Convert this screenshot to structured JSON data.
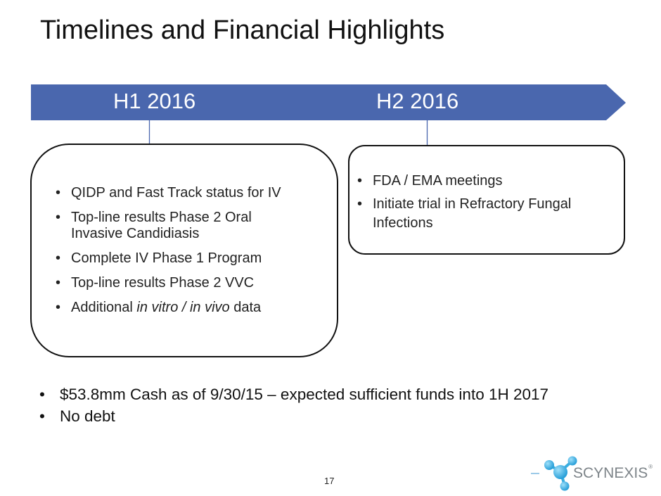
{
  "title": "Timelines and Financial Highlights",
  "timeline": {
    "color": "#4a67ae",
    "periods": [
      {
        "label": "H1 2016"
      },
      {
        "label": "H2 2016"
      }
    ]
  },
  "h1_box": {
    "items": [
      "QIDP and Fast Track status for IV",
      "Top-line results Phase 2 Oral Invasive Candidiasis",
      "Complete IV Phase 1 Program",
      "Top-line results Phase 2 VVC"
    ],
    "last_item": {
      "prefix": "Additional ",
      "italic": "in vitro / in vivo",
      "suffix": " data"
    }
  },
  "h2_box": {
    "items": [
      "FDA / EMA meetings",
      "Initiate trial in Refractory Fungal Infections"
    ]
  },
  "highlights": [
    "$53.8mm Cash as of 9/30/15 – expected sufficient funds into 1H 2017",
    "No debt"
  ],
  "page_number": "17",
  "logo": {
    "text": "SCYNEXIS",
    "mark": "®",
    "color": "#3aaee0"
  }
}
